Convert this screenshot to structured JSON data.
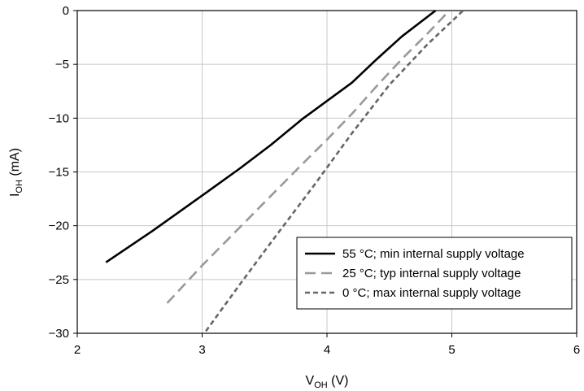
{
  "chart_data": {
    "type": "line",
    "xlabel": {
      "main": "V",
      "sub": "OH",
      "unit": " (V)"
    },
    "ylabel": {
      "main": "I",
      "sub": "OH",
      "unit": " (mA)"
    },
    "xlim": [
      2,
      6
    ],
    "ylim": [
      -30,
      0
    ],
    "xticks": [
      "2",
      "3",
      "4",
      "5",
      "6"
    ],
    "yticks": [
      "0",
      "−5",
      "−10",
      "−15",
      "−20",
      "−25",
      "−30"
    ],
    "grid": true,
    "legend_position": "bottom-right",
    "series": [
      {
        "name": "55 °C; min internal supply voltage",
        "color": "#000000",
        "style": "solid",
        "x": [
          2.23,
          2.6,
          3.0,
          3.3,
          3.55,
          3.8,
          4.0,
          4.2,
          4.4,
          4.6,
          4.87
        ],
        "y": [
          -23.4,
          -20.5,
          -17.2,
          -14.7,
          -12.5,
          -10.1,
          -8.4,
          -6.7,
          -4.5,
          -2.4,
          0
        ]
      },
      {
        "name": "25 °C; typ internal supply voltage",
        "color": "#999999",
        "style": "dashed",
        "x": [
          2.72,
          3.0,
          3.4,
          3.8,
          4.0,
          4.2,
          4.4,
          4.6,
          4.8,
          4.98
        ],
        "y": [
          -27.2,
          -23.7,
          -19.0,
          -14.3,
          -12.0,
          -9.6,
          -7.0,
          -4.5,
          -2.2,
          0
        ]
      },
      {
        "name": "0 °C; max internal supply voltage",
        "color": "#666666",
        "style": "dotted",
        "x": [
          3.03,
          3.3,
          3.6,
          3.9,
          4.2,
          4.5,
          4.8,
          5.09
        ],
        "y": [
          -29.8,
          -25.5,
          -20.8,
          -16.2,
          -11.4,
          -6.9,
          -3.2,
          0
        ]
      }
    ]
  }
}
